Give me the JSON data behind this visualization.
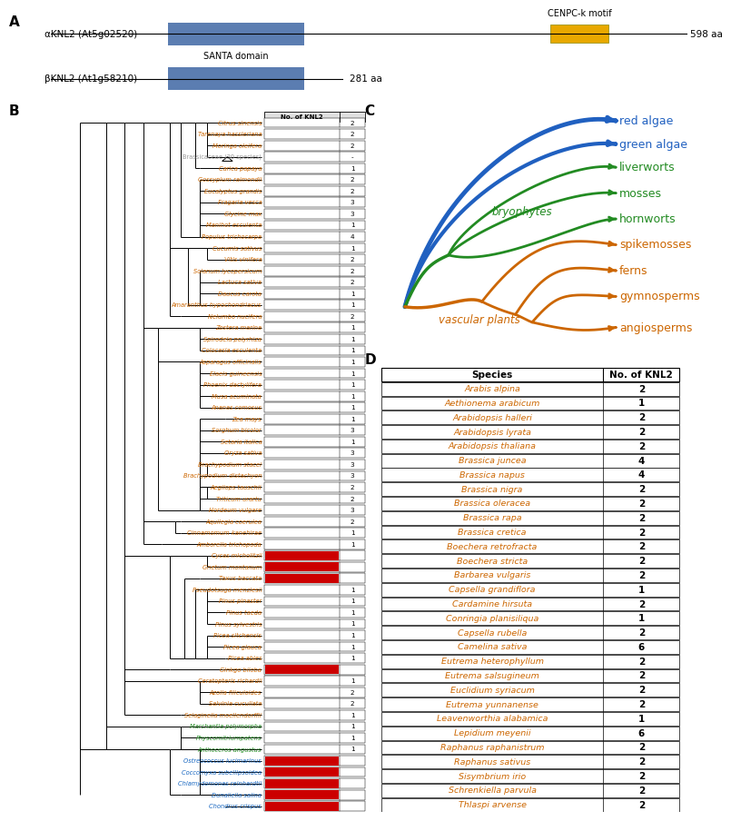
{
  "panel_A": {
    "alpha_label": "αKNL2 (At5g02520)",
    "beta_label": "βKNL2 (At1g58210)",
    "alpha_aa": "598 aa",
    "beta_aa": "281 aa",
    "santa_label": "SANTA domain",
    "cenpc_label": "CENPC-k motif",
    "box_blue": "#5B7DB1",
    "cenpc_yellow": "#E8A800"
  },
  "panel_B_species": [
    {
      "name": "Citrus sinensis",
      "color": "#CC6600",
      "val": "2"
    },
    {
      "name": "Tarenaya hassleriana",
      "color": "#CC6600",
      "val": "2"
    },
    {
      "name": "Moringa oleifera",
      "color": "#CC6600",
      "val": "2"
    },
    {
      "name": "Brassicaceae (30 species)",
      "color": "#999999",
      "val": "-"
    },
    {
      "name": "Carica papaya",
      "color": "#CC6600",
      "val": "1"
    },
    {
      "name": "Gossypium raimondii",
      "color": "#CC6600",
      "val": "2"
    },
    {
      "name": "Eucalyptus grandis",
      "color": "#CC6600",
      "val": "2"
    },
    {
      "name": "Fragaria vesca",
      "color": "#CC6600",
      "val": "3"
    },
    {
      "name": "Glycine max",
      "color": "#CC6600",
      "val": "3"
    },
    {
      "name": "Manihot esculenta",
      "color": "#CC6600",
      "val": "1"
    },
    {
      "name": "Populus trichocarpa",
      "color": "#CC6600",
      "val": "4"
    },
    {
      "name": "Cucumis sativus",
      "color": "#CC6600",
      "val": "1"
    },
    {
      "name": "Vitis vinifera",
      "color": "#CC6600",
      "val": "2"
    },
    {
      "name": "Solanum lycopersicum",
      "color": "#CC6600",
      "val": "2"
    },
    {
      "name": "Lactuca sativa",
      "color": "#CC6600",
      "val": "2"
    },
    {
      "name": "Daucus carota",
      "color": "#CC6600",
      "val": "1"
    },
    {
      "name": "Amaranthus hypochondriacus",
      "color": "#CC6600",
      "val": "1"
    },
    {
      "name": "Nelumbo nucifera",
      "color": "#CC6600",
      "val": "2"
    },
    {
      "name": "Zostera marina",
      "color": "#CC6600",
      "val": "1"
    },
    {
      "name": "Spirodela polyrhiza",
      "color": "#CC6600",
      "val": "1"
    },
    {
      "name": "Colocasia esculenta",
      "color": "#CC6600",
      "val": "1"
    },
    {
      "name": "Asparagus officinalis",
      "color": "#CC6600",
      "val": "1"
    },
    {
      "name": "Elaeis guineensis",
      "color": "#CC6600",
      "val": "1"
    },
    {
      "name": "Phoenix dactylifera",
      "color": "#CC6600",
      "val": "1"
    },
    {
      "name": "Musa acuminata",
      "color": "#CC6600",
      "val": "1"
    },
    {
      "name": "Ananas comosus",
      "color": "#CC6600",
      "val": "1"
    },
    {
      "name": "Zea mays",
      "color": "#CC6600",
      "val": "1"
    },
    {
      "name": "Sorghum bicolor",
      "color": "#CC6600",
      "val": "3"
    },
    {
      "name": "Setaria italica",
      "color": "#CC6600",
      "val": "1"
    },
    {
      "name": "Oryza sativa",
      "color": "#CC6600",
      "val": "3"
    },
    {
      "name": "Brachypodium stacei",
      "color": "#CC6600",
      "val": "3"
    },
    {
      "name": "Brachypodium distachyon",
      "color": "#CC6600",
      "val": "3"
    },
    {
      "name": "Aegilops tauschii",
      "color": "#CC6600",
      "val": "2"
    },
    {
      "name": "Triticum urartu",
      "color": "#CC6600",
      "val": "2"
    },
    {
      "name": "Hordeum vulgare",
      "color": "#CC6600",
      "val": "3"
    },
    {
      "name": "Aquilegia coerulea",
      "color": "#CC6600",
      "val": "2"
    },
    {
      "name": "Cinnamomum kanehirae",
      "color": "#CC6600",
      "val": "1"
    },
    {
      "name": "Amborella trichopoda",
      "color": "#CC6600",
      "val": "1"
    },
    {
      "name": "Cycas micholitzii",
      "color": "#CC6600",
      "val": "RED"
    },
    {
      "name": "Gnetum montanum",
      "color": "#CC6600",
      "val": "RED"
    },
    {
      "name": "Taxus baccata",
      "color": "#CC6600",
      "val": "RED"
    },
    {
      "name": "Pseudotsuga menziesii",
      "color": "#CC6600",
      "val": "1"
    },
    {
      "name": "Pinus pinaster",
      "color": "#CC6600",
      "val": "1"
    },
    {
      "name": "Pinus taeda",
      "color": "#CC6600",
      "val": "1"
    },
    {
      "name": "Pinus sylvestris",
      "color": "#CC6600",
      "val": "1"
    },
    {
      "name": "Picea sitchensis",
      "color": "#CC6600",
      "val": "1"
    },
    {
      "name": "Picea glauca",
      "color": "#CC6600",
      "val": "1"
    },
    {
      "name": "Picea abies",
      "color": "#CC6600",
      "val": "1"
    },
    {
      "name": "Ginkgo biloba",
      "color": "#CC6600",
      "val": "RED"
    },
    {
      "name": "Ceratopteris richardii",
      "color": "#CC6600",
      "val": "1"
    },
    {
      "name": "Azolla filiculoides",
      "color": "#CC6600",
      "val": "2"
    },
    {
      "name": "Salvinia cucullata",
      "color": "#CC6600",
      "val": "2"
    },
    {
      "name": "Selaginella moellendorffii",
      "color": "#CC6600",
      "val": "1"
    },
    {
      "name": "Marchantia polymorpha",
      "color": "#228B22",
      "val": "1"
    },
    {
      "name": "Physcomitriumpatens",
      "color": "#228B22",
      "val": "1"
    },
    {
      "name": "Anthoceros angustus",
      "color": "#228B22",
      "val": "1"
    },
    {
      "name": "Ostreococcus lucimarinus",
      "color": "#1565C0",
      "val": "RED"
    },
    {
      "name": "Coccomyxa subellipsoidea",
      "color": "#1565C0",
      "val": "RED"
    },
    {
      "name": "Chlamydomonas reinhardtii",
      "color": "#1565C0",
      "val": "RED"
    },
    {
      "name": "Dunaliella salina",
      "color": "#1565C0",
      "val": "RED"
    },
    {
      "name": "Chondrus crispus",
      "color": "#1565C0",
      "val": "RED"
    }
  ],
  "panel_C": {
    "blue_labels": [
      "red algae",
      "green algae"
    ],
    "green_labels": [
      "liverworts",
      "mosses",
      "hornworts"
    ],
    "orange_labels": [
      "spikemosses",
      "ferns",
      "gymnosperms",
      "angiosperms"
    ],
    "bryophytes_label": "bryophytes",
    "vascular_label": "vascular plants",
    "blue_color": "#2060C0",
    "green_color": "#228B22",
    "orange_color": "#CC6600"
  },
  "panel_D_species": [
    {
      "name": "Arabis alpina",
      "val": "2"
    },
    {
      "name": "Aethionema arabicum",
      "val": "1"
    },
    {
      "name": "Arabidopsis halleri",
      "val": "2"
    },
    {
      "name": "Arabidopsis lyrata",
      "val": "2"
    },
    {
      "name": "Arabidopsis thaliana",
      "val": "2"
    },
    {
      "name": "Brassica juncea",
      "val": "4"
    },
    {
      "name": "Brassica napus",
      "val": "4"
    },
    {
      "name": "Brassica nigra",
      "val": "2"
    },
    {
      "name": "Brassica oleracea",
      "val": "2"
    },
    {
      "name": "Brassica rapa",
      "val": "2"
    },
    {
      "name": "Brassica cretica",
      "val": "2"
    },
    {
      "name": "Boechera retrofracta",
      "val": "2"
    },
    {
      "name": "Boechera stricta",
      "val": "2"
    },
    {
      "name": "Barbarea vulgaris",
      "val": "2"
    },
    {
      "name": "Capsella grandiflora",
      "val": "1"
    },
    {
      "name": "Cardamine hirsuta",
      "val": "2"
    },
    {
      "name": "Conringia planisiliqua",
      "val": "1"
    },
    {
      "name": "Capsella rubella",
      "val": "2"
    },
    {
      "name": "Camelina sativa",
      "val": "6"
    },
    {
      "name": "Eutrema heterophyllum",
      "val": "2"
    },
    {
      "name": "Eutrema salsugineum",
      "val": "2"
    },
    {
      "name": "Euclidium syriacum",
      "val": "2"
    },
    {
      "name": "Eutrema yunnanense",
      "val": "2"
    },
    {
      "name": "Leavenworthia alabamica",
      "val": "1"
    },
    {
      "name": "Lepidium meyenii",
      "val": "6"
    },
    {
      "name": "Raphanus raphanistrum",
      "val": "2"
    },
    {
      "name": "Raphanus sativus",
      "val": "2"
    },
    {
      "name": "Sisymbrium irio",
      "val": "2"
    },
    {
      "name": "Schrenkiella parvula",
      "val": "2"
    },
    {
      "name": "Thlaspi arvense",
      "val": "2"
    }
  ],
  "colors": {
    "orange": "#CC6600",
    "green": "#228B22",
    "blue": "#1565C0",
    "red": "#CC0000"
  }
}
